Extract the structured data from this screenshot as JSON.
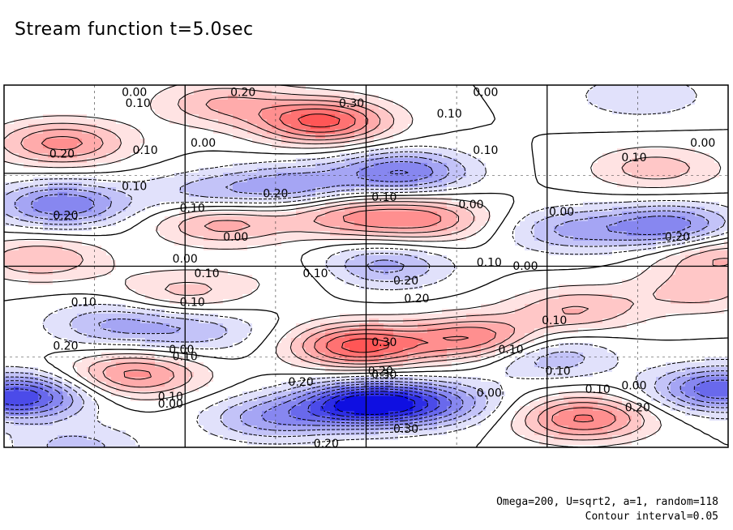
{
  "chart_data": {
    "type": "heatmap",
    "title": "Stream function t=5.0sec",
    "grid": true,
    "colors": {
      "positive": "#ff2020",
      "negative": "#1010e0",
      "zero": "#ffffff"
    },
    "contour_interval": 0.05,
    "blobs": [
      {
        "x": 0.44,
        "y": 0.1,
        "value": 0.32
      },
      {
        "x": 0.3,
        "y": 0.05,
        "value": 0.15
      },
      {
        "x": 0.08,
        "y": 0.16,
        "value": 0.22
      },
      {
        "x": 0.9,
        "y": 0.23,
        "value": 0.13
      },
      {
        "x": 0.3,
        "y": 0.38,
        "value": 0.18
      },
      {
        "x": 0.47,
        "y": 0.36,
        "value": 0.17
      },
      {
        "x": 0.58,
        "y": 0.37,
        "value": 0.2
      },
      {
        "x": 0.05,
        "y": 0.48,
        "value": 0.15
      },
      {
        "x": 0.99,
        "y": 0.47,
        "value": 0.16
      },
      {
        "x": 0.25,
        "y": 0.57,
        "value": 0.12
      },
      {
        "x": 0.79,
        "y": 0.62,
        "value": 0.15
      },
      {
        "x": 0.96,
        "y": 0.57,
        "value": 0.12
      },
      {
        "x": 0.18,
        "y": 0.8,
        "value": 0.22
      },
      {
        "x": 0.49,
        "y": 0.72,
        "value": 0.32
      },
      {
        "x": 0.65,
        "y": 0.7,
        "value": 0.25
      },
      {
        "x": 0.8,
        "y": 0.92,
        "value": 0.26
      },
      {
        "x": 0.42,
        "y": 0.52,
        "value": 0.05
      },
      {
        "x": 0.55,
        "y": 0.24,
        "value": -0.25
      },
      {
        "x": 0.08,
        "y": 0.33,
        "value": -0.25
      },
      {
        "x": 0.4,
        "y": 0.28,
        "value": -0.18
      },
      {
        "x": 0.28,
        "y": 0.3,
        "value": -0.12
      },
      {
        "x": 0.78,
        "y": 0.4,
        "value": -0.15
      },
      {
        "x": 0.92,
        "y": 0.39,
        "value": -0.24
      },
      {
        "x": 0.52,
        "y": 0.5,
        "value": -0.18
      },
      {
        "x": 0.15,
        "y": 0.66,
        "value": -0.15
      },
      {
        "x": 0.27,
        "y": 0.68,
        "value": -0.12
      },
      {
        "x": 0.75,
        "y": 0.75,
        "value": -0.15
      },
      {
        "x": 0.5,
        "y": 0.88,
        "value": -0.42
      },
      {
        "x": 0.02,
        "y": 0.86,
        "value": -0.35
      },
      {
        "x": 0.99,
        "y": 0.84,
        "value": -0.3
      },
      {
        "x": 0.6,
        "y": 0.88,
        "value": -0.18
      },
      {
        "x": 0.37,
        "y": 0.92,
        "value": -0.18
      },
      {
        "x": 0.88,
        "y": 0.03,
        "value": -0.1
      },
      {
        "x": 0.1,
        "y": 1.0,
        "value": -0.12
      }
    ],
    "contour_labels": [
      {
        "x": 0.36,
        "y": 0.03,
        "text": "0.00"
      },
      {
        "x": 0.37,
        "y": 0.06,
        "text": "0.10"
      },
      {
        "x": 0.66,
        "y": 0.03,
        "text": "0.20"
      },
      {
        "x": 0.96,
        "y": 0.06,
        "text": "0.30"
      },
      {
        "x": 1.33,
        "y": 0.03,
        "text": "0.00"
      },
      {
        "x": 1.23,
        "y": 0.09,
        "text": "0.10"
      },
      {
        "x": 0.16,
        "y": 0.2,
        "text": "0.20"
      },
      {
        "x": 0.39,
        "y": 0.19,
        "text": "0.10"
      },
      {
        "x": 0.55,
        "y": 0.17,
        "text": "0.00"
      },
      {
        "x": 1.33,
        "y": 0.19,
        "text": "0.10"
      },
      {
        "x": 1.74,
        "y": 0.21,
        "text": "0.10"
      },
      {
        "x": 1.93,
        "y": 0.17,
        "text": "0.00"
      },
      {
        "x": 0.36,
        "y": 0.29,
        "text": "0.10"
      },
      {
        "x": 0.75,
        "y": 0.31,
        "text": "0.20"
      },
      {
        "x": 1.05,
        "y": 0.32,
        "text": "0.10"
      },
      {
        "x": 1.29,
        "y": 0.34,
        "text": "0.00"
      },
      {
        "x": 0.17,
        "y": 0.37,
        "text": "0.20"
      },
      {
        "x": 0.52,
        "y": 0.35,
        "text": "0.10"
      },
      {
        "x": 1.54,
        "y": 0.36,
        "text": "0.00"
      },
      {
        "x": 1.86,
        "y": 0.43,
        "text": "0.20"
      },
      {
        "x": 0.64,
        "y": 0.43,
        "text": "0.00"
      },
      {
        "x": 0.5,
        "y": 0.49,
        "text": "0.00"
      },
      {
        "x": 0.56,
        "y": 0.53,
        "text": "0.10"
      },
      {
        "x": 0.86,
        "y": 0.53,
        "text": "0.10"
      },
      {
        "x": 1.11,
        "y": 0.55,
        "text": "0.20"
      },
      {
        "x": 1.34,
        "y": 0.5,
        "text": "0.10"
      },
      {
        "x": 1.44,
        "y": 0.51,
        "text": "0.00"
      },
      {
        "x": 0.22,
        "y": 0.61,
        "text": "0.10"
      },
      {
        "x": 0.52,
        "y": 0.61,
        "text": "0.10"
      },
      {
        "x": 1.14,
        "y": 0.6,
        "text": "0.20"
      },
      {
        "x": 1.52,
        "y": 0.66,
        "text": "0.10"
      },
      {
        "x": 0.17,
        "y": 0.73,
        "text": "0.20"
      },
      {
        "x": 0.49,
        "y": 0.74,
        "text": "0.00"
      },
      {
        "x": 0.5,
        "y": 0.76,
        "text": "0.10"
      },
      {
        "x": 1.05,
        "y": 0.72,
        "text": "0.30"
      },
      {
        "x": 1.4,
        "y": 0.74,
        "text": "0.10"
      },
      {
        "x": 1.04,
        "y": 0.8,
        "text": "0.20"
      },
      {
        "x": 1.05,
        "y": 0.81,
        "text": "0.30"
      },
      {
        "x": 1.53,
        "y": 0.8,
        "text": "0.10"
      },
      {
        "x": 0.82,
        "y": 0.83,
        "text": "0.20"
      },
      {
        "x": 1.34,
        "y": 0.86,
        "text": "0.00"
      },
      {
        "x": 1.64,
        "y": 0.85,
        "text": "0.10"
      },
      {
        "x": 1.74,
        "y": 0.84,
        "text": "0.00"
      },
      {
        "x": 0.46,
        "y": 0.87,
        "text": "0.10"
      },
      {
        "x": 0.46,
        "y": 0.89,
        "text": "0.00"
      },
      {
        "x": 1.75,
        "y": 0.9,
        "text": "0.20"
      },
      {
        "x": 1.11,
        "y": 0.96,
        "text": "0.30"
      },
      {
        "x": 0.89,
        "y": 1.0,
        "text": "0.20"
      }
    ],
    "footnotes": [
      "Omega=200, U=sqrt2, a=1, random=118",
      "Contour interval=0.05"
    ]
  }
}
